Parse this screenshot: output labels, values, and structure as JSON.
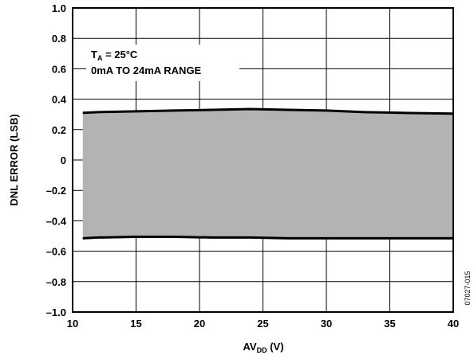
{
  "chart_data": {
    "type": "area",
    "xlabel": {
      "main": "AV",
      "sub": "DD",
      "unit": " (V)"
    },
    "ylabel": "DNL ERROR (LSB)",
    "xlim": [
      10,
      40
    ],
    "ylim": [
      -1.0,
      1.0
    ],
    "x_ticks": [
      10,
      15,
      20,
      25,
      30,
      35,
      40
    ],
    "y_ticks": [
      1.0,
      0.8,
      0.6,
      0.4,
      0.2,
      0,
      -0.2,
      -0.4,
      -0.6,
      -0.8,
      -1.0
    ],
    "x_tick_labels": [
      "10",
      "15",
      "20",
      "25",
      "30",
      "35",
      "40"
    ],
    "y_tick_labels": [
      "1.0",
      "0.8",
      "0.6",
      "0.4",
      "0.2",
      "0",
      "–0.2",
      "–0.4",
      "–0.6",
      "–0.8",
      "–1.0"
    ],
    "grid": true,
    "fill_color": "#b3b3b3",
    "line_color": "#000000",
    "series": [
      {
        "x": [
          10.8,
          12,
          15,
          18,
          21,
          24,
          27,
          30,
          33,
          36,
          40
        ],
        "values": [
          0.31,
          0.315,
          0.32,
          0.325,
          0.33,
          0.335,
          0.33,
          0.325,
          0.315,
          0.31,
          0.305
        ]
      },
      {
        "x": [
          10.8,
          12,
          15,
          18,
          21,
          24,
          27,
          30,
          33,
          36,
          40
        ],
        "values": [
          -0.515,
          -0.51,
          -0.505,
          -0.505,
          -0.51,
          -0.51,
          -0.515,
          -0.515,
          -0.515,
          -0.515,
          -0.515
        ]
      }
    ],
    "annotations": {
      "temp_main": "T",
      "temp_sub": "A",
      "temp_rest": " = 25°C",
      "range": "0mA TO 24mA RANGE"
    },
    "figure_id": "07027-015"
  }
}
